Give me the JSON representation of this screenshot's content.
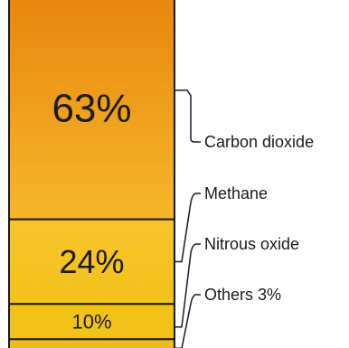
{
  "chart_data": {
    "type": "bar",
    "categories": [
      "Carbon dioxide",
      "Methane",
      "Nitrous oxide",
      "Others"
    ],
    "values": [
      63,
      24,
      10,
      3
    ],
    "value_labels": [
      "63%",
      "24%",
      "10%",
      ""
    ],
    "legend_labels": [
      "Carbon dioxide",
      "Methane",
      "Nitrous oxide",
      "Others 3%"
    ],
    "unit": "%",
    "colors": {
      "carbon_dioxide_top": "#e8860f",
      "carbon_dioxide_bottom": "#f6b72a",
      "methane_top": "#f8c42b",
      "methane_bottom": "#f3c21b",
      "nitrous_oxide": "#f0c21a",
      "others": "#ecbd18",
      "outline": "#1a1a1a",
      "text": "#1a1a1a"
    }
  }
}
